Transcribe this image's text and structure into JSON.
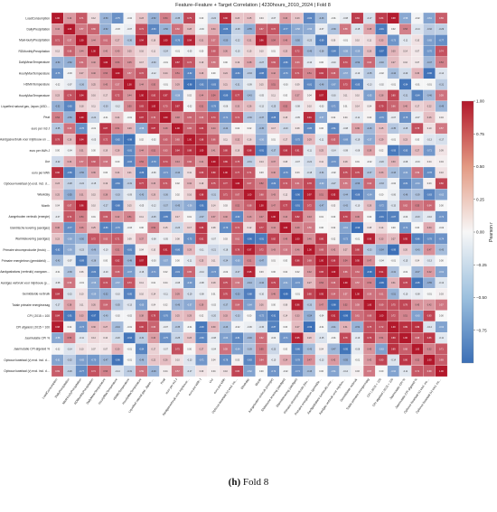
{
  "chart_data": {
    "type": "heatmap",
    "title": "Feature–Feature + Target Correlation | 4230hours_2010_2024 | Fold 8",
    "colorbar_label": "Pearson r",
    "colorbar_ticks": [
      "1.00",
      "0.75",
      "0.50",
      "0.25",
      "0.00",
      "−0.25",
      "−0.50",
      "−0.75"
    ],
    "vmin": -1,
    "vmax": 1,
    "colormap": [
      "#3b6fb6",
      "#f7f7f7",
      "#b2182b"
    ],
    "labels": [
      "LoadConsumption",
      "DailyPrecipitation",
      "MaxHourlyPrecipitation",
      "RDMonthlyPrecipitation",
      "DailyMeanTemperature",
      "HourlyMaxTemperature",
      "HDMinTemperature",
      "HourlyMaxTemperature",
      "Liquefied natural gas, Japan (USD/MMBtu)",
      "Peat",
      "euro per m3 J",
      "Aardgasverbruik voor mijnbouw en gesloten kassen",
      "euro per kWh J",
      "Uur",
      "euro per kWh",
      "Opbouw kwartaal (v) excl. incl. doorlevering (4 kwart.)",
      "Weekday",
      "Month",
      "Aangeboden verbruik (energie)",
      "Elektrische levering (aardgas)",
      "Warmtelevering (aardgas)",
      "Primaire stroomproductie (bruto) na aftrek",
      "Primaire energiebron (gemiddeld) (% excl.)",
      "Aardgasbalans (verbruik) voorgaande",
      "Aardgas verbruik voor mijnbouw (prognose)",
      "Gemiddelde verbruik",
      "Totale primaire energievraag",
      "CPI | 2015 = 100",
      "CPI afgeleid | 2015 = 100",
      "Jaarmutatie CPI %",
      "Jaarmutatie CPI afgeleid %",
      "Opbouw kwartaal (v) excl. incl. doorlevering (voorgaande)",
      "Opbouw kwartaal (v) excl. incl. doorlevering (prognose)"
    ],
    "matrix_seed": 8
  },
  "caption": {
    "label": "(h)",
    "text": "Fold 8"
  }
}
